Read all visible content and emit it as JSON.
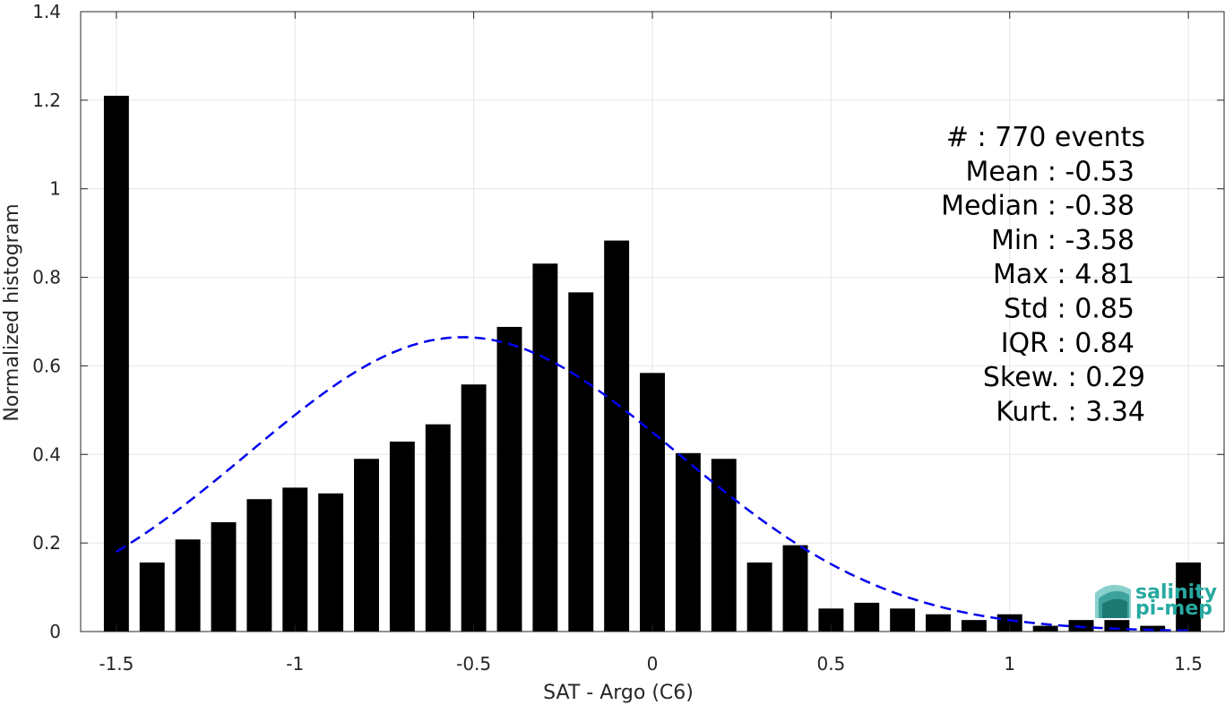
{
  "chart_data": {
    "type": "bar",
    "xlabel": "SAT - Argo (C6)",
    "ylabel": "Normalized histogram",
    "xlim": [
      -1.6,
      1.6
    ],
    "ylim": [
      0,
      1.4
    ],
    "xticks": [
      -1.5,
      -1,
      -0.5,
      0,
      0.5,
      1,
      1.5
    ],
    "xtick_labels": [
      "-1.5",
      "-1",
      "-0.5",
      "0",
      "0.5",
      "1",
      "1.5"
    ],
    "yticks": [
      0,
      0.2,
      0.4,
      0.6,
      0.8,
      1,
      1.2,
      1.4
    ],
    "ytick_labels": [
      "0",
      "0.2",
      "0.4",
      "0.6",
      "0.8",
      "1",
      "1.2",
      "1.4"
    ],
    "grid": true,
    "bar_width": 0.07,
    "bar_color": "#000000",
    "x": [
      -1.5,
      -1.4,
      -1.3,
      -1.2,
      -1.1,
      -1.0,
      -0.9,
      -0.8,
      -0.7,
      -0.6,
      -0.5,
      -0.4,
      -0.3,
      -0.2,
      -0.1,
      0.0,
      0.1,
      0.2,
      0.3,
      0.4,
      0.5,
      0.6,
      0.7,
      0.8,
      0.9,
      1.0,
      1.1,
      1.2,
      1.3,
      1.4,
      1.5
    ],
    "values": [
      1.21,
      0.156,
      0.208,
      0.247,
      0.299,
      0.325,
      0.312,
      0.39,
      0.429,
      0.468,
      0.558,
      0.688,
      0.831,
      0.766,
      0.883,
      0.584,
      0.403,
      0.39,
      0.156,
      0.195,
      0.052,
      0.065,
      0.052,
      0.039,
      0.026,
      0.039,
      0.013,
      0.026,
      0.026,
      0.013,
      0.156
    ],
    "fit_curve": {
      "style": "dashed",
      "color": "#0000ee",
      "mean": -0.53,
      "std": 0.6,
      "x_range": [
        -1.5,
        1.5
      ]
    },
    "stats": [
      {
        "label": "#",
        "sep": " : ",
        "value": "770 events"
      },
      {
        "label": "Mean",
        "sep": " : ",
        "value": "-0.53"
      },
      {
        "label": "Median",
        "sep": " : ",
        "value": "-0.38"
      },
      {
        "label": "Min",
        "sep": " : ",
        "value": "-3.58"
      },
      {
        "label": "Max",
        "sep": " : ",
        "value": "4.81"
      },
      {
        "label": "Std",
        "sep": " : ",
        "value": "0.85"
      },
      {
        "label": "IQR",
        "sep": " : ",
        "value": "0.84"
      },
      {
        "label": "Skew.",
        "sep": " : ",
        "value": "0.29"
      },
      {
        "label": "Kurt.",
        "sep": " : ",
        "value": "3.34"
      }
    ]
  },
  "logo": {
    "line1": "salinity",
    "line2": "pi-mep",
    "color": "#27a9a0"
  }
}
